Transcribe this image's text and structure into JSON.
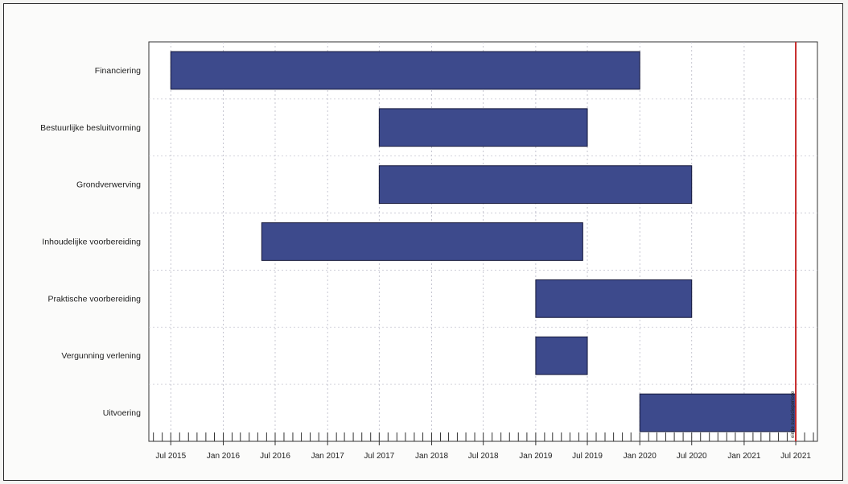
{
  "chart_data": {
    "type": "gantt",
    "categories": [
      "Financiering",
      "Bestuurlijke besluitvorming",
      "Grondverwerving",
      "Inhoudelijke voorbereiding",
      "Praktische voorbereiding",
      "Vergunning verlening",
      "Uitvoering"
    ],
    "tasks": [
      {
        "name": "Financiering",
        "start": "2015-07-01",
        "end": "2020-01-01"
      },
      {
        "name": "Bestuurlijke besluitvorming",
        "start": "2017-07-01",
        "end": "2019-07-01"
      },
      {
        "name": "Grondverwerving",
        "start": "2017-07-01",
        "end": "2020-07-01"
      },
      {
        "name": "Inhoudelijke voorbereiding",
        "start": "2016-05-15",
        "end": "2019-06-15"
      },
      {
        "name": "Praktische voorbereiding",
        "start": "2019-01-01",
        "end": "2020-07-01"
      },
      {
        "name": "Vergunning verlening",
        "start": "2019-01-01",
        "end": "2019-07-01"
      },
      {
        "name": "Uitvoering",
        "start": "2020-01-01",
        "end": "2021-07-01"
      }
    ],
    "x_tick_labels": [
      "Jul 2015",
      "Jan 2016",
      "Jul 2016",
      "Jan 2017",
      "Jul 2017",
      "Jan 2018",
      "Jul 2018",
      "Jan 2019",
      "Jul 2019",
      "Jan 2020",
      "Jul 2020",
      "Jan 2021",
      "Jul 2021"
    ],
    "x_ticks": [
      "2015-07-01",
      "2016-01-01",
      "2016-07-01",
      "2017-01-01",
      "2017-07-01",
      "2018-01-01",
      "2018-07-01",
      "2019-01-01",
      "2019-07-01",
      "2020-01-01",
      "2020-07-01",
      "2021-01-01",
      "2021-07-01"
    ],
    "xlim": [
      "2015-04-15",
      "2021-09-15"
    ],
    "marker": {
      "date": "2021-07-01",
      "label": "einde subsidieperiode",
      "color": "#c62828"
    },
    "bar_color": "#3d4a8c",
    "grid": true
  }
}
